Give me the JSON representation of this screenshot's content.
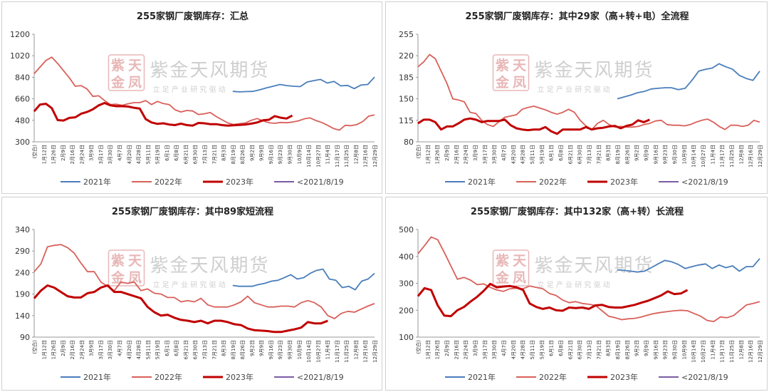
{
  "watermark": {
    "cn": "紫金天风期货",
    "sub": "立 足 产 业   研 究 驱 动",
    "seal": "紫天金凤"
  },
  "legend": [
    "2021年",
    "2022年",
    "2023年",
    "<2021/8/19"
  ],
  "series_colors": {
    "2021": "#4a7ebb",
    "2022": "#d9605a",
    "2023": "#c00000",
    "pre": "#7c5ca5"
  },
  "x_labels": [
    "(空白)",
    "1月12日",
    "1月26日",
    "2月9日",
    "2月16日",
    "2月24日",
    "3月9日",
    "3月17日",
    "3月30日",
    "4月7日",
    "4月20日",
    "4月28日",
    "5月11日",
    "5月19日",
    "6月1日",
    "6月8日",
    "6月21日",
    "6月30日",
    "7月13日",
    "7月21日",
    "8月3日",
    "8月19日",
    "8月26日",
    "9月2日",
    "9月9日",
    "9月16日",
    "9月23日",
    "9月30日",
    "10月9日",
    "10月14日",
    "10月27日",
    "11月4日",
    "11月17日",
    "11月25日",
    "12月8日",
    "12月16日",
    "12月29日"
  ],
  "chart_data": [
    {
      "type": "line",
      "title": "255家钢厂废钢库存：汇总",
      "ylim": [
        300,
        1200
      ],
      "yticks": [
        300,
        480,
        660,
        840,
        1020,
        1200
      ],
      "series": [
        {
          "name": "2021年",
          "start": 21,
          "values": [
            722,
            718,
            720,
            722,
            735,
            752,
            765,
            780,
            770,
            765,
            762,
            800,
            812,
            822,
            792,
            805,
            768,
            772,
            745,
            775,
            780,
            842
          ]
        },
        {
          "name": "2022年",
          "start": 0,
          "values": [
            870,
            925,
            980,
            1008,
            955,
            895,
            835,
            765,
            770,
            742,
            680,
            685,
            645,
            612,
            615,
            605,
            618,
            628,
            628,
            645,
            612,
            638,
            620,
            612,
            568,
            550,
            562,
            558,
            528,
            535,
            545,
            512,
            485,
            458,
            445,
            452,
            458,
            480,
            495,
            475,
            460,
            455,
            462,
            460,
            465,
            475,
            492,
            500,
            478,
            462,
            438,
            412,
            398,
            438,
            435,
            445,
            470,
            515,
            525
          ]
        },
        {
          "name": "2023年",
          "start": 0,
          "values": [
            555,
            612,
            618,
            582,
            482,
            478,
            500,
            505,
            535,
            550,
            572,
            605,
            625,
            605,
            598,
            598,
            595,
            585,
            578,
            490,
            462,
            450,
            455,
            445,
            440,
            452,
            440,
            435,
            458,
            455,
            448,
            448,
            440,
            435,
            438,
            442,
            445,
            452,
            462,
            480,
            485,
            515,
            502,
            495,
            520
          ]
        }
      ]
    },
    {
      "type": "line",
      "title": "255家钢厂废钢库存：其中29家（高+转+电）全流程",
      "ylim": [
        80,
        255
      ],
      "yticks": [
        80,
        115,
        150,
        185,
        220,
        255
      ],
      "series": [
        {
          "name": "2021年",
          "start": 21,
          "values": [
            150,
            153,
            156,
            160,
            162,
            166,
            167,
            168,
            168,
            165,
            167,
            180,
            195,
            198,
            200,
            207,
            202,
            198,
            188,
            183,
            180,
            195
          ]
        },
        {
          "name": "2022年",
          "start": 0,
          "values": [
            202,
            210,
            222,
            215,
            195,
            175,
            150,
            148,
            145,
            128,
            126,
            115,
            108,
            105,
            113,
            120,
            122,
            124,
            133,
            136,
            138,
            135,
            132,
            128,
            125,
            128,
            133,
            128,
            115,
            106,
            100,
            110,
            115,
            108,
            104,
            105,
            104,
            104,
            105,
            108,
            110,
            114,
            115,
            108,
            107,
            107,
            106,
            108,
            112,
            115,
            117,
            112,
            105,
            100,
            107,
            107,
            105,
            107,
            115,
            112
          ]
        },
        {
          "name": "2023年",
          "start": 0,
          "values": [
            110,
            116,
            116,
            112,
            100,
            105,
            105,
            110,
            116,
            118,
            116,
            112,
            114,
            114,
            114,
            116,
            107,
            102,
            100,
            99,
            100,
            100,
            104,
            97,
            93,
            100,
            100,
            100,
            100,
            104,
            100,
            102,
            103,
            105,
            106,
            102,
            106,
            108,
            115,
            112,
            116
          ]
        }
      ]
    },
    {
      "type": "line",
      "title": "255家钢厂废钢库存：其中89家短流程",
      "ylim": [
        90,
        340
      ],
      "yticks": [
        90,
        140,
        190,
        240,
        290,
        340
      ],
      "series": [
        {
          "name": "2021年",
          "start": 21,
          "values": [
            210,
            208,
            208,
            208,
            212,
            215,
            220,
            222,
            228,
            235,
            225,
            228,
            238,
            245,
            248,
            225,
            222,
            205,
            208,
            200,
            220,
            225,
            238
          ]
        },
        {
          "name": "2022年",
          "start": 0,
          "values": [
            242,
            260,
            300,
            303,
            305,
            298,
            285,
            262,
            242,
            242,
            218,
            208,
            198,
            218,
            215,
            218,
            198,
            202,
            192,
            190,
            182,
            182,
            172,
            175,
            172,
            180,
            165,
            160,
            160,
            160,
            165,
            172,
            185,
            170,
            165,
            160,
            160,
            162,
            162,
            160,
            170,
            175,
            170,
            160,
            140,
            133,
            145,
            150,
            148,
            155,
            162,
            168
          ]
        },
        {
          "name": "2023年",
          "start": 0,
          "values": [
            180,
            198,
            210,
            205,
            195,
            185,
            182,
            182,
            192,
            195,
            205,
            210,
            195,
            195,
            190,
            185,
            180,
            160,
            148,
            140,
            142,
            135,
            130,
            128,
            125,
            128,
            122,
            128,
            128,
            125,
            120,
            118,
            110,
            106,
            105,
            104,
            102,
            102,
            105,
            108,
            112,
            125,
            122,
            122,
            128
          ]
        }
      ]
    },
    {
      "type": "line",
      "title": "255家钢厂废钢库存：其中132家（高+转）长流程",
      "ylim": [
        100,
        500
      ],
      "yticks": [
        100,
        200,
        300,
        400,
        500
      ],
      "series": [
        {
          "name": "2021年",
          "start": 21,
          "values": [
            350,
            348,
            345,
            342,
            345,
            358,
            372,
            385,
            380,
            370,
            355,
            362,
            368,
            372,
            355,
            368,
            358,
            365,
            345,
            362,
            362,
            392
          ]
        },
        {
          "name": "2022年",
          "start": 0,
          "values": [
            410,
            440,
            472,
            462,
            415,
            365,
            315,
            322,
            312,
            295,
            298,
            285,
            275,
            270,
            280,
            282,
            280,
            290,
            285,
            280,
            262,
            255,
            238,
            228,
            232,
            225,
            222,
            218,
            198,
            178,
            172,
            165,
            168,
            170,
            175,
            182,
            188,
            192,
            195,
            198,
            200,
            198,
            188,
            178,
            162,
            158,
            175,
            172,
            180,
            200,
            220,
            225,
            232
          ]
        },
        {
          "name": "2023年",
          "start": 0,
          "values": [
            252,
            282,
            275,
            218,
            180,
            178,
            200,
            212,
            232,
            250,
            272,
            298,
            285,
            288,
            290,
            285,
            275,
            225,
            212,
            205,
            210,
            200,
            198,
            210,
            208,
            210,
            205,
            218,
            220,
            212,
            210,
            210,
            215,
            220,
            228,
            235,
            245,
            255,
            270,
            260,
            262,
            275
          ]
        }
      ]
    }
  ]
}
